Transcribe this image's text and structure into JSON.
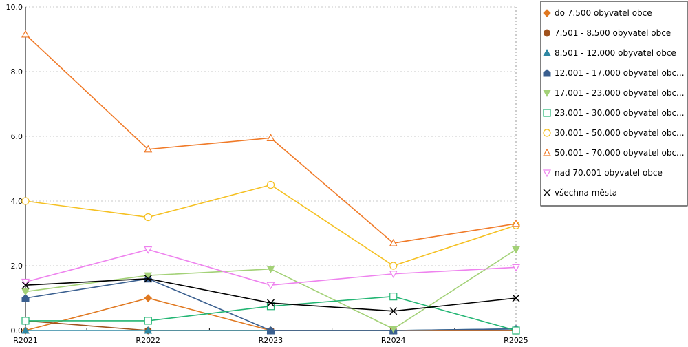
{
  "chart_data": {
    "type": "line",
    "title": "",
    "xlabel": "",
    "ylabel": "",
    "categories": [
      "R2021",
      "R2022",
      "R2023",
      "R2024",
      "R2025"
    ],
    "ylim": [
      0,
      10
    ],
    "yticks": [
      "0.0",
      "2.0",
      "4.0",
      "6.0",
      "8.0",
      "10.0"
    ],
    "grid": "horizontal dotted",
    "legend_position": "right",
    "series": [
      {
        "name": "do 7.500 obyvatel obce",
        "color": "#e07820",
        "marker": "diamond",
        "values": [
          0.0,
          1.0,
          0.0,
          0.0,
          0.0
        ]
      },
      {
        "name": "7.501 - 8.500 obyvatel obce",
        "color": "#a0521d",
        "marker": "hexagon",
        "values": [
          0.3,
          0.0,
          0.0,
          0.0,
          0.0
        ]
      },
      {
        "name": "8.501 - 12.000 obyvatel obce",
        "color": "#2e87a3",
        "marker": "triangle",
        "values": [
          0.0,
          0.0,
          0.0,
          0.0,
          0.05
        ]
      },
      {
        "name": "12.001 - 17.000 obyvatel obc...",
        "color": "#3a5f8f",
        "marker": "pentagon",
        "values": [
          1.0,
          1.6,
          0.0,
          0.0,
          0.05
        ]
      },
      {
        "name": "17.001 - 23.000 obyvatel obc...",
        "color": "#a3d177",
        "marker": "triangle-down-filled",
        "values": [
          1.2,
          1.7,
          1.9,
          0.05,
          2.5
        ]
      },
      {
        "name": "23.001 - 30.000 obyvatel obc...",
        "color": "#22b573",
        "marker": "square-open",
        "values": [
          0.3,
          0.3,
          0.75,
          1.05,
          0.0
        ]
      },
      {
        "name": "30.001 - 50.000 obyvatel obc...",
        "color": "#f5c021",
        "marker": "circle-open",
        "values": [
          4.0,
          3.5,
          4.5,
          2.0,
          3.25
        ]
      },
      {
        "name": "50.001 - 70.000 obyvatel obc...",
        "color": "#f07a28",
        "marker": "triangle-open",
        "values": [
          9.15,
          5.6,
          5.95,
          2.7,
          3.3
        ]
      },
      {
        "name": "nad 70.001 obyvatel obce",
        "color": "#ee82ee",
        "marker": "triangle-down-open",
        "values": [
          1.5,
          2.5,
          1.4,
          1.75,
          1.95
        ]
      },
      {
        "name": "všechna města",
        "color": "#000000",
        "marker": "x",
        "values": [
          1.4,
          1.6,
          0.85,
          0.6,
          1.0
        ]
      }
    ]
  }
}
